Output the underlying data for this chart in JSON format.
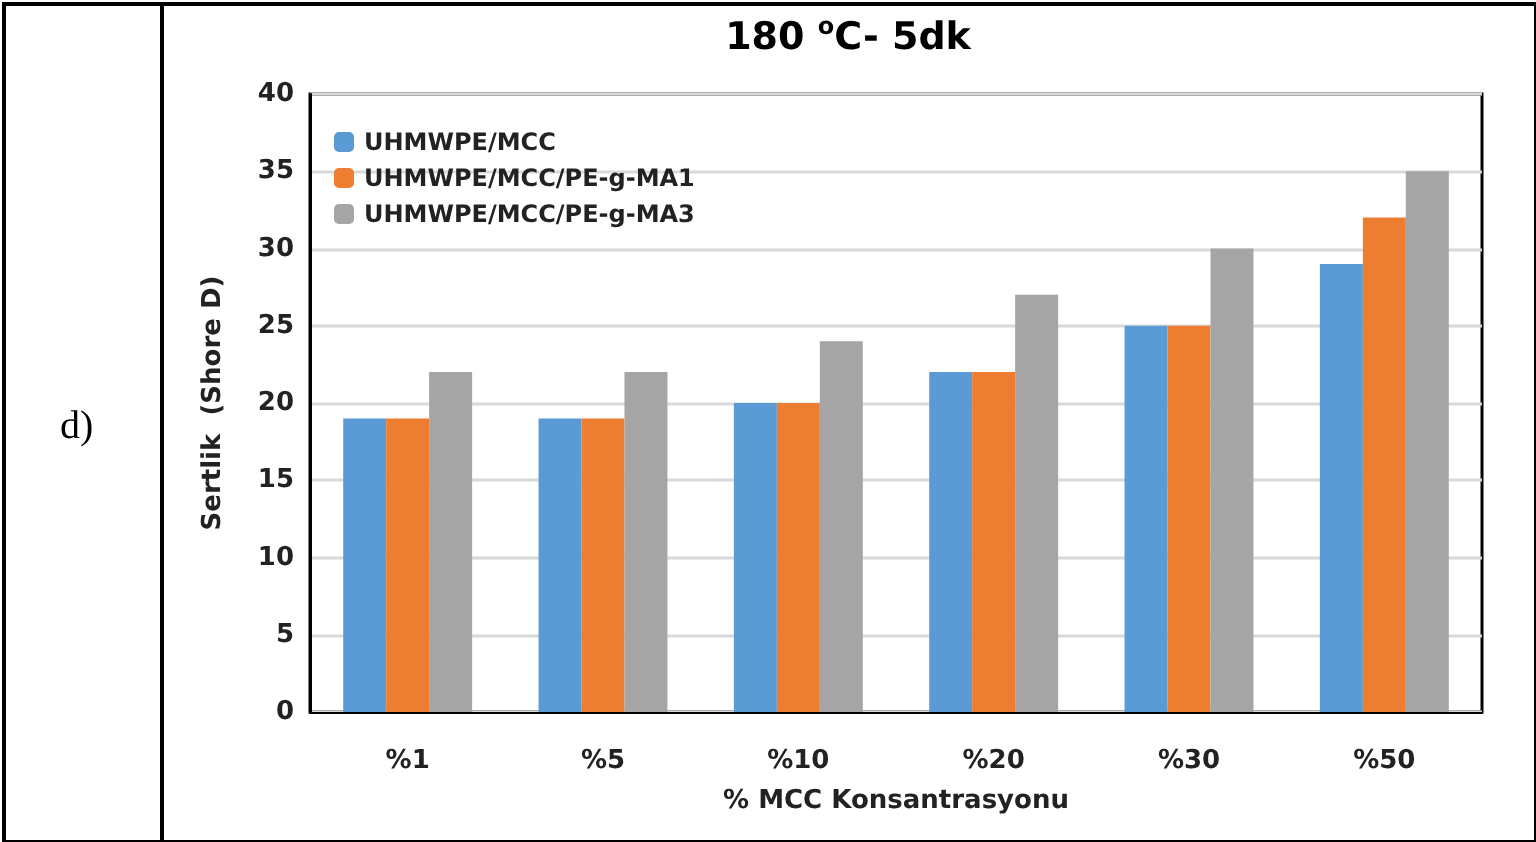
{
  "chart_data": {
    "type": "bar",
    "title": "180 $^{o}$C- 5dk",
    "xlabel": "% MCC Konsantrasyonu",
    "ylabel": "Sertlik  (Shore D)",
    "annotations": [
      "d)"
    ],
    "categories": [
      "%1",
      "%5",
      "%10",
      "%20",
      "%30",
      "%50"
    ],
    "series": [
      {
        "name": "UHMWPE/MCC",
        "color": "#5b9bd5",
        "values": [
          19,
          19,
          20,
          22,
          25,
          29
        ]
      },
      {
        "name": "UHMWPE/MCC/PE-g-MA1",
        "color": "#ed7d31",
        "values": [
          19,
          19,
          20,
          22,
          25,
          32
        ]
      },
      {
        "name": "UHMWPE/MCC/PE-g-MA3",
        "color": "#a5a5a5",
        "values": [
          22,
          22,
          24,
          27,
          30,
          35
        ]
      }
    ],
    "ylim": [
      0,
      40
    ],
    "yticks": [
      0,
      5,
      10,
      15,
      20,
      25,
      30,
      35,
      40
    ],
    "grid": "y",
    "legend": "top left"
  }
}
